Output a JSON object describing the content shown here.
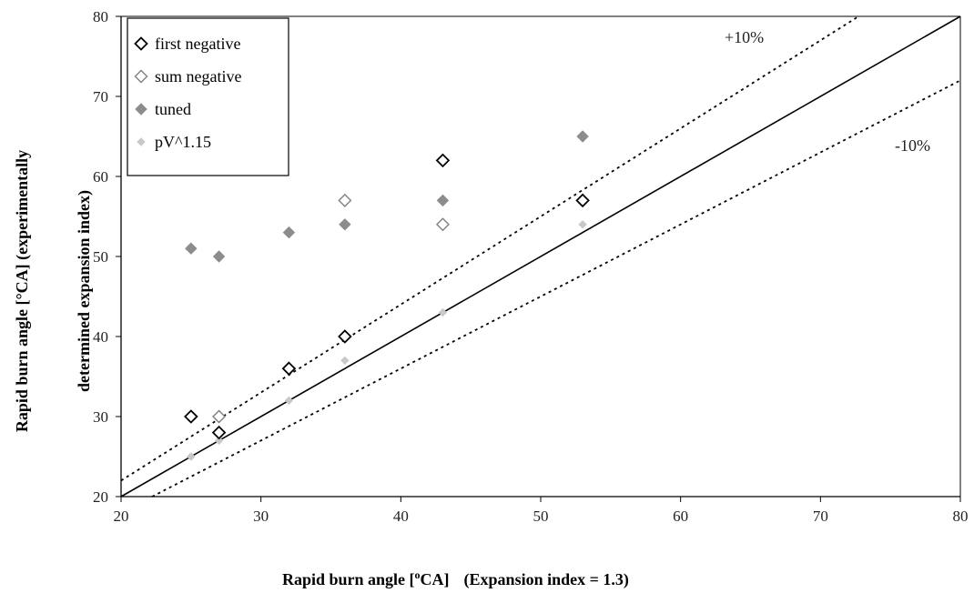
{
  "chart_data": {
    "type": "scatter",
    "title": "",
    "xlabel": "Rapid burn angle [°CA]",
    "xlabel_prefix": "Rapid burn angle [",
    "xlabel_degree": "o",
    "xlabel_unit": "CA]",
    "xlabel_note": "(Expansion index = 1.3)",
    "ylabel_line1": "Rapid burn angle [°CA] (experimentally",
    "ylabel_line2": "determined expansion index)",
    "xlim": [
      20,
      80
    ],
    "ylim": [
      20,
      80
    ],
    "xticks": [
      20,
      30,
      40,
      50,
      60,
      70,
      80
    ],
    "yticks": [
      20,
      30,
      40,
      50,
      60,
      70,
      80
    ],
    "grid": false,
    "legend_position": "top-left",
    "series": [
      {
        "name": "first negative",
        "marker": "diamond-open",
        "color": "#000000",
        "points": [
          [
            25,
            30
          ],
          [
            27,
            28
          ],
          [
            32,
            36
          ],
          [
            36,
            40
          ],
          [
            43,
            62
          ],
          [
            53,
            57
          ]
        ]
      },
      {
        "name": "sum negative",
        "marker": "diamond-open",
        "color": "#808080",
        "points": [
          [
            25,
            30
          ],
          [
            27,
            30
          ],
          [
            32,
            36
          ],
          [
            36,
            57
          ],
          [
            43,
            54
          ],
          [
            53,
            57
          ]
        ]
      },
      {
        "name": "tuned",
        "marker": "diamond-filled",
        "color": "#8c8c8c",
        "points": [
          [
            25,
            51
          ],
          [
            27,
            50
          ],
          [
            32,
            53
          ],
          [
            36,
            54
          ],
          [
            43,
            57
          ],
          [
            53,
            65
          ]
        ]
      },
      {
        "name": "pV^1.15",
        "marker": "diamond-filled-small",
        "color": "#c8c8c8",
        "points": [
          [
            25,
            25
          ],
          [
            27,
            27
          ],
          [
            32,
            32
          ],
          [
            36,
            37
          ],
          [
            43,
            43
          ],
          [
            53,
            54
          ]
        ]
      }
    ],
    "reference_lines": [
      {
        "slope": 1.0,
        "style": "solid"
      },
      {
        "slope": 1.1,
        "style": "dotted",
        "label": "+10%"
      },
      {
        "slope": 0.9,
        "style": "dotted",
        "label": "-10%"
      }
    ]
  }
}
